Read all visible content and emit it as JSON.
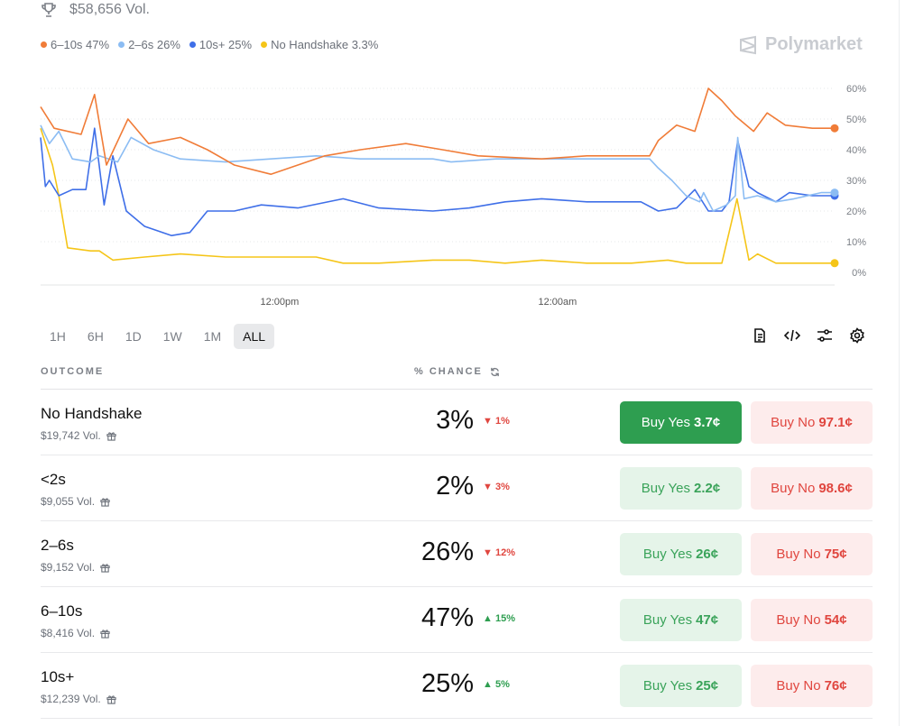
{
  "header": {
    "volume": "$58,656 Vol.",
    "logo": "Polymarket"
  },
  "legend": [
    {
      "label": "6–10s 47%",
      "color": "#f07c38"
    },
    {
      "label": "2–6s 26%",
      "color": "#8bbcf3"
    },
    {
      "label": "10s+ 25%",
      "color": "#3f6fe8"
    },
    {
      "label": "No Handshake 3.3%",
      "color": "#f5c518"
    }
  ],
  "chart_data": {
    "type": "line",
    "title": "",
    "xlabel": "",
    "ylabel": "",
    "ylim": [
      0,
      60
    ],
    "xlim": [
      0,
      100
    ],
    "yticks": [
      "0%",
      "10%",
      "20%",
      "30%",
      "40%",
      "50%",
      "60%"
    ],
    "xticks": [
      {
        "t": 30.1,
        "label": "12:00pm"
      },
      {
        "t": 65.1,
        "label": "12:00am"
      }
    ],
    "series": [
      {
        "name": "6–10s",
        "color": "#f07c38",
        "x": [
          0,
          1.7,
          5.1,
          6.8,
          8.3,
          11,
          13.6,
          17.6,
          21,
          24.4,
          29,
          32.4,
          35.8,
          40.3,
          46,
          50.6,
          55.1,
          63.1,
          68.8,
          76.7,
          77.8,
          80.1,
          82.4,
          84.1,
          85.8,
          87.5,
          89.8,
          91.5,
          93.8,
          97.2,
          100
        ],
        "values": [
          54,
          47,
          45,
          58,
          35,
          50,
          42,
          44,
          40,
          35,
          32,
          35,
          38,
          40,
          42,
          40,
          38,
          37,
          38,
          38,
          43,
          48,
          46,
          60,
          56,
          51,
          46,
          52,
          48,
          47,
          47
        ]
      },
      {
        "name": "2–6s",
        "color": "#8bbcf3",
        "x": [
          0,
          1.1,
          2.3,
          4,
          6.3,
          7.4,
          9.7,
          11.4,
          14.2,
          17.6,
          23.3,
          29,
          34.7,
          40.3,
          49.4,
          51.7,
          57.4,
          63.1,
          68.8,
          76.7,
          77.8,
          79.5,
          81.3,
          83,
          83.5,
          84.7,
          86.4,
          87.5,
          87.8,
          88.6,
          90.3,
          92.6,
          94.9,
          98.3,
          100
        ],
        "values": [
          48,
          42,
          46,
          37,
          36,
          38,
          36,
          44,
          40,
          37,
          36,
          37,
          38,
          37,
          37,
          36,
          37,
          37,
          37,
          37,
          34,
          30,
          25,
          23,
          26,
          20,
          22,
          25,
          44,
          24,
          25,
          23,
          24,
          26,
          26
        ]
      },
      {
        "name": "10s+",
        "color": "#3f6fe8",
        "x": [
          0,
          0.6,
          1.1,
          2.3,
          4,
          5.7,
          6.8,
          8,
          9.1,
          10.8,
          13.1,
          16.5,
          18.8,
          21,
          24.4,
          27.8,
          32.4,
          38.1,
          42.6,
          49.4,
          54,
          58.5,
          63.1,
          68.8,
          75.6,
          77.8,
          80.1,
          82.4,
          84.1,
          85.8,
          86.7,
          87.8,
          89.2,
          90.3,
          92.6,
          94.3,
          97.2,
          100
        ],
        "values": [
          44,
          28,
          30,
          25,
          27,
          27,
          47,
          22,
          38,
          20,
          15,
          12,
          13,
          20,
          20,
          22,
          21,
          24,
          21,
          20,
          21,
          23,
          24,
          23,
          23,
          20,
          21,
          27,
          20,
          20,
          23,
          43,
          28,
          26,
          23,
          26,
          25,
          25
        ]
      },
      {
        "name": "No Handshake",
        "color": "#f5c518",
        "x": [
          0,
          1.5,
          2.3,
          3.4,
          6.3,
          7.4,
          9.1,
          13.1,
          17.6,
          23.3,
          29,
          34.7,
          38.1,
          42.6,
          49.4,
          54,
          58.5,
          63.1,
          68.8,
          74.4,
          79,
          81.3,
          85.8,
          87.7,
          89.2,
          90.3,
          92.6,
          100
        ],
        "values": [
          47,
          35,
          25,
          8,
          7,
          7,
          4,
          5,
          6,
          5,
          5,
          5,
          3,
          3,
          4,
          4,
          3,
          4,
          3,
          3,
          4,
          3,
          3,
          24,
          4,
          6,
          3,
          3
        ]
      }
    ]
  },
  "ranges": [
    "1H",
    "6H",
    "1D",
    "1W",
    "1M",
    "ALL"
  ],
  "table": {
    "outcome_header": "OUTCOME",
    "chance_header": "% CHANCE",
    "rows": [
      {
        "name": "No Handshake",
        "volume": "$19,742 Vol.",
        "chance": "3%",
        "change": "1%",
        "dir": "down",
        "yes_label": "Buy Yes",
        "yes_price": "3.7¢",
        "no_label": "Buy No",
        "no_price": "97.1¢"
      },
      {
        "name": "<2s",
        "volume": "$9,055 Vol.",
        "chance": "2%",
        "change": "3%",
        "dir": "down",
        "yes_label": "Buy Yes",
        "yes_price": "2.2¢",
        "no_label": "Buy No",
        "no_price": "98.6¢"
      },
      {
        "name": "2–6s",
        "volume": "$9,152 Vol.",
        "chance": "26%",
        "change": "12%",
        "dir": "down",
        "yes_label": "Buy Yes",
        "yes_price": "26¢",
        "no_label": "Buy No",
        "no_price": "75¢"
      },
      {
        "name": "6–10s",
        "volume": "$8,416 Vol.",
        "chance": "47%",
        "change": "15%",
        "dir": "up",
        "yes_label": "Buy Yes",
        "yes_price": "47¢",
        "no_label": "Buy No",
        "no_price": "54¢"
      },
      {
        "name": "10s+",
        "volume": "$12,239 Vol.",
        "chance": "25%",
        "change": "5%",
        "dir": "up",
        "yes_label": "Buy Yes",
        "yes_price": "25¢",
        "no_label": "Buy No",
        "no_price": "76¢"
      }
    ]
  }
}
